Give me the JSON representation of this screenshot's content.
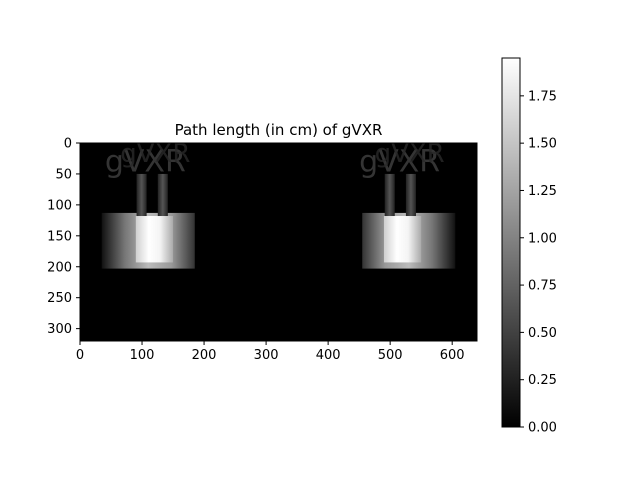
{
  "chart_data": [
    {
      "type": "heatmap",
      "title": "Path length (in cm) of gVXR",
      "xlabel": "",
      "ylabel": "",
      "xlim": [
        0,
        640
      ],
      "ylim": [
        320,
        0
      ],
      "x_ticks": [
        0,
        100,
        200,
        300,
        400,
        500,
        600
      ],
      "y_ticks": [
        0,
        50,
        100,
        150,
        200,
        250,
        300
      ],
      "colormap": "gray",
      "grid": false,
      "image_regions": [
        {
          "label": "left object outer",
          "x": [
            35,
            185
          ],
          "y": [
            113,
            203
          ],
          "value": 0.9
        },
        {
          "label": "left object core",
          "x": [
            90,
            150
          ],
          "y": [
            118,
            193
          ],
          "value": 1.85
        },
        {
          "label": "left stems",
          "x": [
            75,
            165
          ],
          "y": [
            50,
            118
          ],
          "value": 0.45
        },
        {
          "label": "right object outer",
          "x": [
            455,
            605
          ],
          "y": [
            113,
            203
          ],
          "value": 0.9
        },
        {
          "label": "right object core",
          "x": [
            490,
            550
          ],
          "y": [
            118,
            193
          ],
          "value": 1.85
        },
        {
          "label": "right stems",
          "x": [
            475,
            565
          ],
          "y": [
            50,
            118
          ],
          "value": 0.45
        },
        {
          "label": "text ghost left",
          "text": "gVXR",
          "x": [
            0,
            230
          ],
          "y": [
            0,
            110
          ],
          "value": 0.3
        },
        {
          "label": "text ghost right",
          "text": "gVXR",
          "x": [
            410,
            640
          ],
          "y": [
            0,
            110
          ],
          "value": 0.3
        }
      ]
    },
    {
      "type": "colorbar",
      "ylim": [
        0.0,
        1.95
      ],
      "ticks": [
        0.0,
        0.25,
        0.5,
        0.75,
        1.0,
        1.25,
        1.5,
        1.75
      ],
      "tick_labels": [
        "0.00",
        "0.25",
        "0.50",
        "0.75",
        "1.00",
        "1.25",
        "1.50",
        "1.75"
      ],
      "colormap": "gray"
    }
  ]
}
